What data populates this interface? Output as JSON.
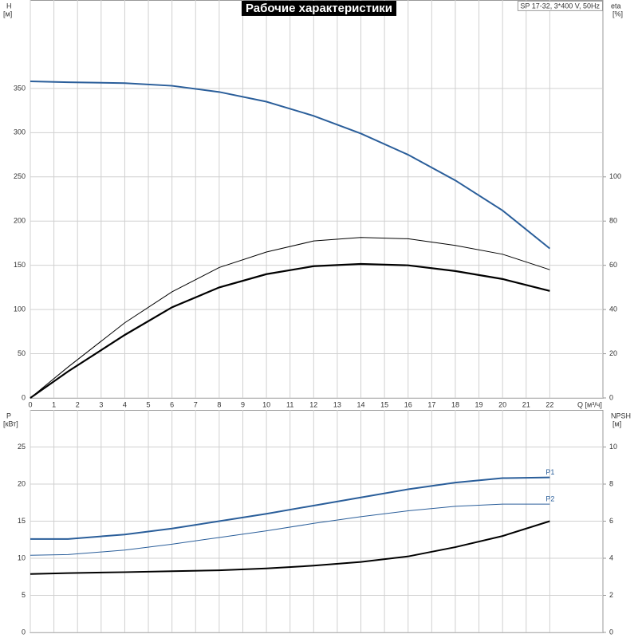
{
  "chart_data": [
    {
      "type": "line",
      "title": "Рабочие характеристики",
      "annotation": "SP 17-32, 3*400 V, 50Hz",
      "xlabel": "Q [м³/ч]",
      "ylabel": "H",
      "ylabel_unit": "[м]",
      "y2label": "eta",
      "y2label_unit": "[%]",
      "xlim": [
        0,
        24.25
      ],
      "xticks": [
        0,
        1,
        2,
        3,
        4,
        5,
        6,
        7,
        8,
        9,
        10,
        11,
        12,
        13,
        14,
        15,
        16,
        17,
        18,
        19,
        20,
        21,
        22
      ],
      "ylim": [
        0,
        450
      ],
      "yticks": [
        0,
        50,
        100,
        150,
        200,
        250,
        300,
        350
      ],
      "y2lim": [
        0,
        180
      ],
      "y2ticks": [
        0,
        20,
        40,
        60,
        80,
        100
      ],
      "grid": true,
      "x": [
        0,
        1.6,
        4,
        6,
        8,
        10,
        12,
        14,
        16,
        18,
        20,
        22
      ],
      "series": [
        {
          "color": "#2a5e9a",
          "width": 2,
          "values": [
            358,
            357,
            356,
            353,
            346,
            335,
            319,
            299,
            275,
            246,
            212,
            169
          ]
        },
        {
          "color": "#000000",
          "width": 1,
          "axis": "y2",
          "values": [
            0,
            14,
            34,
            48,
            59,
            66,
            71,
            72.6,
            72,
            69,
            65,
            58
          ]
        },
        {
          "color": "#000000",
          "width": 2.2,
          "axis": "y2",
          "values": [
            0,
            12,
            28.5,
            41,
            50,
            56,
            59.6,
            60.6,
            60,
            57.4,
            53.8,
            48.4
          ]
        }
      ]
    },
    {
      "type": "line",
      "ylabel": "P",
      "ylabel_unit": "[кВт]",
      "y2label": "NPSH",
      "y2label_unit": "[м]",
      "xlim": [
        0,
        24.25
      ],
      "xticks": [
        0,
        1,
        2,
        3,
        4,
        5,
        6,
        7,
        8,
        9,
        10,
        11,
        12,
        13,
        14,
        15,
        16,
        17,
        18,
        19,
        20,
        21,
        22
      ],
      "ylim": [
        0,
        30
      ],
      "yticks": [
        0,
        5,
        10,
        15,
        20,
        25
      ],
      "y2lim": [
        0,
        12
      ],
      "y2ticks": [
        0,
        2,
        4,
        6,
        8,
        10
      ],
      "grid": true,
      "x": [
        0,
        1.6,
        4,
        6,
        8,
        10,
        12,
        14,
        16,
        18,
        20,
        22
      ],
      "series": [
        {
          "name": "P1",
          "color": "#2a5e9a",
          "width": 2,
          "values": [
            12.6,
            12.6,
            13.2,
            14,
            15,
            16,
            17.1,
            18.2,
            19.3,
            20.2,
            20.8,
            20.9
          ]
        },
        {
          "name": "P2",
          "color": "#2a5e9a",
          "width": 1,
          "values": [
            10.4,
            10.5,
            11.1,
            11.9,
            12.8,
            13.7,
            14.7,
            15.6,
            16.4,
            17,
            17.3,
            17.3
          ]
        },
        {
          "color": "#000000",
          "width": 2,
          "axis": "y2",
          "values": [
            3.15,
            3.2,
            3.25,
            3.3,
            3.35,
            3.45,
            3.6,
            3.8,
            4.1,
            4.6,
            5.2,
            6.0
          ]
        }
      ]
    }
  ]
}
